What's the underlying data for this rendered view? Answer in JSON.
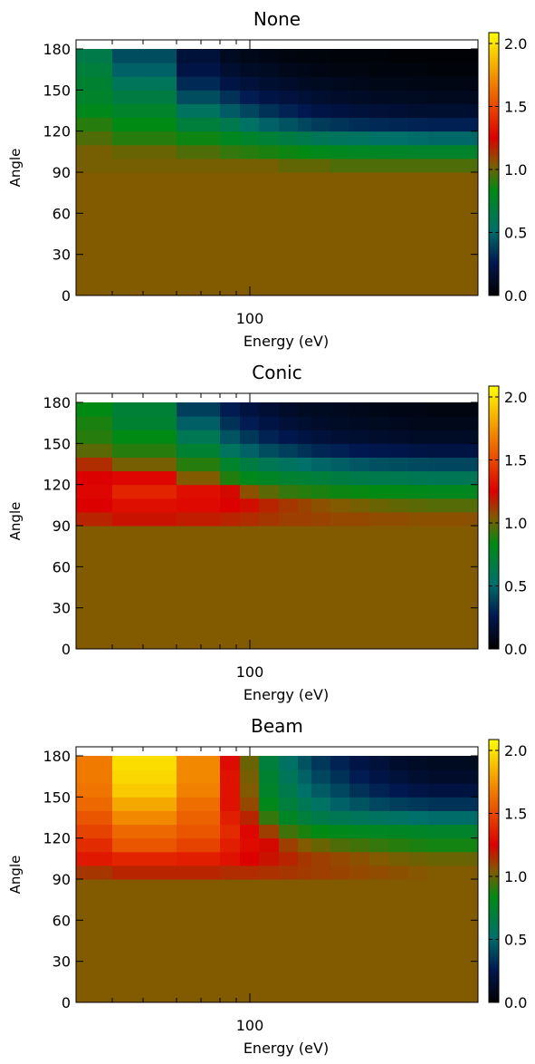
{
  "colorbar": {
    "ticks": [
      "0.0",
      "0.5",
      "1.0",
      "1.5",
      "2.0"
    ],
    "range": [
      0,
      2
    ],
    "stops": [
      {
        "v": 0.0,
        "color": "#000000"
      },
      {
        "v": 0.25,
        "color": "#001850"
      },
      {
        "v": 0.5,
        "color": "#00706a"
      },
      {
        "v": 0.8,
        "color": "#008a14"
      },
      {
        "v": 1.0,
        "color": "#825a00"
      },
      {
        "v": 1.2,
        "color": "#dc0000"
      },
      {
        "v": 1.6,
        "color": "#f07a00"
      },
      {
        "v": 2.0,
        "color": "#ffff00"
      }
    ]
  },
  "chart_data": [
    {
      "type": "heatmap",
      "title": "None",
      "xlabel": "Energy (eV)",
      "ylabel": "Angle",
      "x_scale": "log",
      "x_ticks": [
        "100"
      ],
      "y_ticks": [
        "0",
        "30",
        "60",
        "90",
        "120",
        "150",
        "180"
      ],
      "ylim": [
        0,
        180
      ],
      "y_bins": [
        [
          90,
          100
        ],
        [
          100,
          110
        ],
        [
          110,
          120
        ],
        [
          120,
          130
        ],
        [
          130,
          140
        ],
        [
          140,
          150
        ],
        [
          150,
          160
        ],
        [
          160,
          170
        ],
        [
          170,
          180
        ]
      ],
      "z_below": 1.0,
      "z_rows": [
        [
          0.98,
          0.98,
          0.98,
          0.98,
          0.98,
          0.98,
          0.98,
          0.95,
          0.95,
          0.95,
          0.92,
          0.92,
          0.92,
          0.92,
          0.92,
          0.92
        ],
        [
          0.98,
          0.96,
          0.96,
          0.92,
          0.88,
          0.86,
          0.84,
          0.82,
          0.8,
          0.78,
          0.76,
          0.75,
          0.74,
          0.73,
          0.72,
          0.72
        ],
        [
          0.92,
          0.86,
          0.86,
          0.82,
          0.76,
          0.72,
          0.68,
          0.64,
          0.6,
          0.57,
          0.55,
          0.53,
          0.51,
          0.5,
          0.49,
          0.48
        ],
        [
          0.86,
          0.8,
          0.8,
          0.66,
          0.6,
          0.52,
          0.46,
          0.42,
          0.38,
          0.35,
          0.33,
          0.31,
          0.3,
          0.29,
          0.28,
          0.27
        ],
        [
          0.78,
          0.72,
          0.72,
          0.54,
          0.44,
          0.38,
          0.32,
          0.28,
          0.25,
          0.22,
          0.2,
          0.18,
          0.17,
          0.16,
          0.15,
          0.15
        ],
        [
          0.72,
          0.64,
          0.64,
          0.4,
          0.32,
          0.26,
          0.22,
          0.19,
          0.17,
          0.15,
          0.13,
          0.12,
          0.11,
          0.1,
          0.1,
          0.09
        ],
        [
          0.7,
          0.56,
          0.56,
          0.3,
          0.22,
          0.18,
          0.15,
          0.13,
          0.11,
          0.1,
          0.09,
          0.08,
          0.07,
          0.07,
          0.06,
          0.06
        ],
        [
          0.66,
          0.46,
          0.46,
          0.22,
          0.15,
          0.12,
          0.1,
          0.08,
          0.07,
          0.06,
          0.05,
          0.05,
          0.04,
          0.04,
          0.04,
          0.03
        ],
        [
          0.62,
          0.4,
          0.4,
          0.18,
          0.1,
          0.08,
          0.06,
          0.05,
          0.04,
          0.04,
          0.03,
          0.03,
          0.03,
          0.02,
          0.02,
          0.02
        ]
      ]
    },
    {
      "type": "heatmap",
      "title": "Conic",
      "xlabel": "Energy (eV)",
      "ylabel": "Angle",
      "x_scale": "log",
      "x_ticks": [
        "100"
      ],
      "y_ticks": [
        "0",
        "30",
        "60",
        "90",
        "120",
        "150",
        "180"
      ],
      "ylim": [
        0,
        180
      ],
      "y_bins": [
        [
          90,
          100
        ],
        [
          100,
          110
        ],
        [
          110,
          120
        ],
        [
          120,
          130
        ],
        [
          130,
          140
        ],
        [
          140,
          150
        ],
        [
          150,
          160
        ],
        [
          160,
          170
        ],
        [
          170,
          180
        ]
      ],
      "z_below": 1.0,
      "z_rows": [
        [
          1.12,
          1.16,
          1.16,
          1.14,
          1.12,
          1.1,
          1.08,
          1.06,
          1.06,
          1.05,
          1.04,
          1.04,
          1.03,
          1.03,
          1.02,
          1.02
        ],
        [
          1.2,
          1.25,
          1.25,
          1.23,
          1.2,
          1.17,
          1.12,
          1.08,
          1.05,
          1.02,
          1.0,
          0.98,
          0.96,
          0.95,
          0.94,
          0.93
        ],
        [
          1.22,
          1.32,
          1.32,
          1.25,
          1.18,
          1.02,
          0.94,
          0.88,
          0.86,
          0.84,
          0.82,
          0.81,
          0.8,
          0.79,
          0.78,
          0.77
        ],
        [
          1.2,
          1.22,
          1.22,
          1.0,
          0.85,
          0.78,
          0.74,
          0.7,
          0.68,
          0.66,
          0.64,
          0.62,
          0.6,
          0.59,
          0.58,
          0.57
        ],
        [
          1.1,
          0.98,
          0.98,
          0.86,
          0.72,
          0.64,
          0.58,
          0.54,
          0.5,
          0.47,
          0.45,
          0.43,
          0.41,
          0.4,
          0.39,
          0.38
        ],
        [
          0.94,
          0.86,
          0.86,
          0.7,
          0.55,
          0.46,
          0.4,
          0.36,
          0.32,
          0.29,
          0.27,
          0.25,
          0.24,
          0.23,
          0.22,
          0.21
        ],
        [
          0.86,
          0.8,
          0.8,
          0.58,
          0.42,
          0.34,
          0.28,
          0.24,
          0.21,
          0.18,
          0.16,
          0.15,
          0.14,
          0.13,
          0.12,
          0.12
        ],
        [
          0.84,
          0.7,
          0.7,
          0.45,
          0.32,
          0.26,
          0.21,
          0.17,
          0.15,
          0.13,
          0.12,
          0.11,
          0.1,
          0.09,
          0.08,
          0.08
        ],
        [
          0.8,
          0.68,
          0.68,
          0.36,
          0.26,
          0.2,
          0.16,
          0.13,
          0.11,
          0.1,
          0.09,
          0.08,
          0.07,
          0.06,
          0.06,
          0.05
        ]
      ]
    },
    {
      "type": "heatmap",
      "title": "Beam",
      "xlabel": "Energy (eV)",
      "ylabel": "Angle",
      "x_scale": "log",
      "x_ticks": [
        "100"
      ],
      "y_ticks": [
        "0",
        "30",
        "60",
        "90",
        "120",
        "150",
        "180"
      ],
      "ylim": [
        0,
        180
      ],
      "y_bins": [
        [
          90,
          100
        ],
        [
          100,
          110
        ],
        [
          110,
          120
        ],
        [
          120,
          130
        ],
        [
          130,
          140
        ],
        [
          140,
          150
        ],
        [
          150,
          160
        ],
        [
          160,
          170
        ],
        [
          170,
          180
        ]
      ],
      "z_below": 1.0,
      "z_rows": [
        [
          1.08,
          1.12,
          1.12,
          1.12,
          1.1,
          1.1,
          1.09,
          1.08,
          1.07,
          1.06,
          1.05,
          1.04,
          1.03,
          1.02,
          1.01,
          1.0
        ],
        [
          1.28,
          1.32,
          1.32,
          1.3,
          1.26,
          1.2,
          1.16,
          1.12,
          1.08,
          1.06,
          1.04,
          1.02,
          1.0,
          0.98,
          0.97,
          0.96
        ],
        [
          1.34,
          1.48,
          1.48,
          1.42,
          1.3,
          1.24,
          1.18,
          1.06,
          1.0,
          0.96,
          0.92,
          0.9,
          0.88,
          0.86,
          0.84,
          0.83
        ],
        [
          1.42,
          1.54,
          1.54,
          1.48,
          1.34,
          1.22,
          1.06,
          0.9,
          0.84,
          0.8,
          0.78,
          0.76,
          0.75,
          0.74,
          0.73,
          0.72
        ],
        [
          1.48,
          1.64,
          1.64,
          1.52,
          1.3,
          1.12,
          0.88,
          0.74,
          0.66,
          0.62,
          0.58,
          0.56,
          0.54,
          0.52,
          0.5,
          0.49
        ],
        [
          1.54,
          1.74,
          1.74,
          1.56,
          1.26,
          1.04,
          0.78,
          0.66,
          0.58,
          0.52,
          0.46,
          0.42,
          0.38,
          0.36,
          0.34,
          0.32
        ],
        [
          1.58,
          1.84,
          1.84,
          1.62,
          1.26,
          1.0,
          0.72,
          0.6,
          0.5,
          0.44,
          0.38,
          0.32,
          0.28,
          0.25,
          0.22,
          0.2
        ],
        [
          1.6,
          1.88,
          1.88,
          1.64,
          1.26,
          0.98,
          0.7,
          0.56,
          0.46,
          0.38,
          0.32,
          0.26,
          0.22,
          0.18,
          0.15,
          0.13
        ],
        [
          1.6,
          1.9,
          1.9,
          1.64,
          1.24,
          0.96,
          0.66,
          0.52,
          0.42,
          0.34,
          0.28,
          0.22,
          0.18,
          0.14,
          0.12,
          0.1
        ]
      ]
    }
  ]
}
